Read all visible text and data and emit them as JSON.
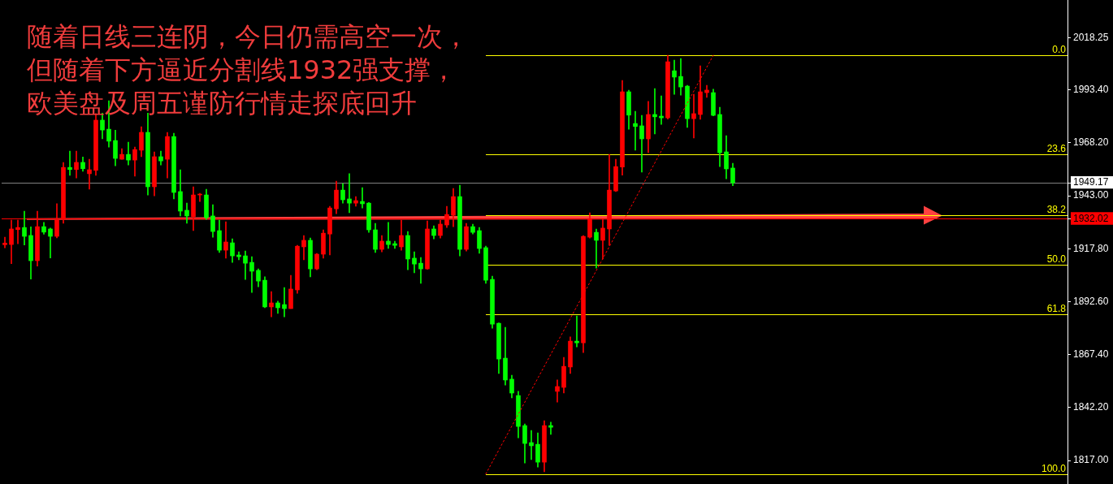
{
  "chart_data": {
    "type": "candlestick",
    "annotations": [
      "随着日线三连阴，今日仍需高空一次，",
      "但随着下方逼近分割线1932强支撑，",
      "欧美盘及周五谨防行情走探底回升"
    ],
    "categories": [
      null,
      null,
      null,
      null,
      null,
      null,
      null,
      null,
      null,
      null,
      null,
      null,
      null,
      null,
      null,
      null,
      null,
      null,
      null,
      null,
      null,
      null,
      null,
      null,
      null,
      null,
      null,
      null,
      null,
      null,
      null,
      null,
      null,
      null,
      null,
      null,
      null,
      null,
      null,
      null,
      null,
      null,
      null,
      null,
      null,
      null,
      null,
      null,
      null,
      null,
      null,
      null,
      null,
      null,
      null,
      null,
      null,
      null,
      null,
      null,
      null,
      null,
      null,
      null,
      null,
      null,
      null,
      null,
      null,
      null,
      null,
      null,
      null,
      null,
      null,
      null,
      null,
      null,
      null,
      null,
      null,
      null,
      null,
      null,
      null,
      null,
      null,
      null,
      null,
      null,
      null,
      null,
      null,
      null,
      null,
      null,
      null,
      null,
      null,
      null,
      null,
      null,
      null,
      null,
      null,
      null,
      null,
      null,
      null,
      null,
      null,
      null,
      null,
      null,
      null,
      null,
      null,
      null,
      null,
      null,
      null,
      null,
      null,
      null,
      null,
      null,
      null,
      null,
      null,
      null,
      null,
      null,
      null,
      null,
      null,
      null,
      null,
      null,
      null,
      null,
      null,
      null,
      null,
      null,
      null,
      null,
      null,
      null,
      null,
      null,
      null,
      null,
      null,
      null,
      null,
      null,
      null,
      null,
      null,
      null,
      null,
      null,
      null,
      null
    ],
    "ohlc": [
      [
        1919.7,
        1923.3,
        1918.2,
        1920.5
      ],
      [
        1919.8,
        1931.4,
        1910.7,
        1927.2
      ],
      [
        1926.9,
        1931.4,
        1920.2,
        1927.9
      ],
      [
        1927.9,
        1935.7,
        1919.6,
        1923.7
      ],
      [
        1924.1,
        1928.2,
        1903.3,
        1912.1
      ],
      [
        1912.1,
        1935.7,
        1909.5,
        1928.3
      ],
      [
        1928.3,
        1930.3,
        1924.7,
        1925.7
      ],
      [
        1927.2,
        1927.6,
        1913.4,
        1923.7
      ],
      [
        1923.7,
        1939.2,
        1923.0,
        1931.5
      ],
      [
        1931.8,
        1958.9,
        1929.9,
        1956.5
      ],
      [
        1956.5,
        1964.3,
        1952.7,
        1955.5
      ],
      [
        1955.5,
        1964.3,
        1951.5,
        1958.9
      ],
      [
        1958.9,
        1961.5,
        1954.7,
        1955.9
      ],
      [
        1953.5,
        1960.4,
        1946.2,
        1955.4
      ],
      [
        1955.1,
        1982.1,
        1952.7,
        1979.0
      ],
      [
        1979.0,
        1982.3,
        1970.1,
        1974.3
      ],
      [
        1974.7,
        1988.2,
        1966.2,
        1969.0
      ],
      [
        1969.3,
        1974.2,
        1957.3,
        1960.8
      ],
      [
        1960.4,
        1965.4,
        1960.4,
        1962.7
      ],
      [
        1962.7,
        1968.5,
        1957.7,
        1960.0
      ],
      [
        1960.0,
        1966.2,
        1952.3,
        1965.0
      ],
      [
        1964.7,
        1975.9,
        1961.6,
        1973.2
      ],
      [
        1973.2,
        1982.3,
        1943.4,
        1947.3
      ],
      [
        1947.3,
        1963.9,
        1943.0,
        1961.6
      ],
      [
        1961.6,
        1964.3,
        1957.7,
        1959.6
      ],
      [
        1960.4,
        1973.2,
        1951.5,
        1971.2
      ],
      [
        1971.2,
        1972.8,
        1941.5,
        1944.6
      ],
      [
        1945.0,
        1955.4,
        1933.4,
        1935.7
      ],
      [
        1936.1,
        1939.5,
        1929.9,
        1933.4
      ],
      [
        1933.0,
        1947.3,
        1926.4,
        1943.4
      ],
      [
        1943.4,
        1944.2,
        1940.3,
        1943.8
      ],
      [
        1943.4,
        1946.1,
        1931.8,
        1932.6
      ],
      [
        1933.4,
        1938.8,
        1923.3,
        1926.0
      ],
      [
        1926.4,
        1931.4,
        1916.0,
        1917.1
      ],
      [
        1917.1,
        1930.6,
        1913.3,
        1921.0
      ],
      [
        1920.6,
        1922.5,
        1911.3,
        1914.4
      ],
      [
        1914.8,
        1916.3,
        1912.5,
        1914.0
      ],
      [
        1914.4,
        1916.7,
        1903.2,
        1910.9
      ],
      [
        1911.3,
        1914.0,
        1897.0,
        1907.1
      ],
      [
        1907.5,
        1908.2,
        1899.7,
        1902.4
      ],
      [
        1902.8,
        1904.4,
        1889.7,
        1890.1
      ],
      [
        1890.1,
        1897.4,
        1885.4,
        1892.0
      ],
      [
        1892.0,
        1892.8,
        1887.0,
        1889.7
      ],
      [
        1891.2,
        1899.3,
        1885.4,
        1889.3
      ],
      [
        1889.3,
        1905.1,
        1889.3,
        1898.6
      ],
      [
        1898.2,
        1919.4,
        1896.6,
        1919.0
      ],
      [
        1918.7,
        1924.1,
        1912.5,
        1921.8
      ],
      [
        1921.8,
        1922.9,
        1904.4,
        1908.2
      ],
      [
        1908.2,
        1915.6,
        1907.8,
        1915.2
      ],
      [
        1915.2,
        1926.8,
        1913.3,
        1925.2
      ],
      [
        1924.8,
        1938.0,
        1914.8,
        1937.2
      ],
      [
        1936.8,
        1950.0,
        1934.5,
        1945.7
      ],
      [
        1945.7,
        1948.8,
        1939.5,
        1941.1
      ],
      [
        1941.5,
        1953.5,
        1934.9,
        1939.5
      ],
      [
        1939.5,
        1942.6,
        1938.0,
        1940.7
      ],
      [
        1940.3,
        1946.9,
        1937.2,
        1939.2
      ],
      [
        1939.5,
        1939.8,
        1925.6,
        1926.8
      ],
      [
        1926.8,
        1929.9,
        1916.0,
        1917.5
      ],
      [
        1917.5,
        1924.1,
        1916.3,
        1921.4
      ],
      [
        1921.4,
        1930.3,
        1917.9,
        1919.8
      ],
      [
        1920.2,
        1921.4,
        1917.9,
        1919.4
      ],
      [
        1918.7,
        1931.4,
        1917.1,
        1924.1
      ],
      [
        1924.1,
        1926.0,
        1907.8,
        1912.9
      ],
      [
        1913.3,
        1916.3,
        1906.3,
        1910.5
      ],
      [
        1910.9,
        1913.6,
        1901.3,
        1908.2
      ],
      [
        1908.2,
        1931.0,
        1908.0,
        1927.2
      ],
      [
        1927.2,
        1928.7,
        1922.5,
        1924.1
      ],
      [
        1924.1,
        1931.4,
        1922.9,
        1929.5
      ],
      [
        1929.1,
        1938.0,
        1927.9,
        1934.1
      ],
      [
        1933.7,
        1946.5,
        1928.3,
        1942.6
      ],
      [
        1942.6,
        1948.0,
        1914.4,
        1917.5
      ],
      [
        1917.5,
        1929.9,
        1916.7,
        1928.3
      ],
      [
        1928.3,
        1929.5,
        1924.8,
        1925.6
      ],
      [
        1926.4,
        1927.9,
        1915.6,
        1917.9
      ],
      [
        1918.3,
        1919.0,
        1901.3,
        1902.8
      ],
      [
        1903.2,
        1904.7,
        1880.0,
        1881.9
      ],
      [
        1882.3,
        1882.5,
        1858.4,
        1865.3
      ],
      [
        1865.7,
        1880.4,
        1852.9,
        1855.3
      ],
      [
        1855.7,
        1857.6,
        1846.8,
        1849.1
      ],
      [
        1847.9,
        1849.9,
        1827.8,
        1833.2
      ],
      [
        1833.6,
        1834.4,
        1815.8,
        1825.1
      ],
      [
        1825.5,
        1831.3,
        1817.4,
        1824.0
      ],
      [
        1824.7,
        1830.1,
        1813.9,
        1816.2
      ],
      [
        1816.2,
        1835.9,
        1811.6,
        1833.6
      ],
      [
        1833.6,
        1835.2,
        1829.4,
        1832.8
      ],
      [
        1849.9,
        1855.3,
        1844.8,
        1852.2
      ],
      [
        1851.8,
        1866.1,
        1849.1,
        1861.8
      ],
      [
        1861.5,
        1875.8,
        1858.4,
        1873.8
      ],
      [
        1873.8,
        1885.8,
        1871.1,
        1873.0
      ],
      [
        1873.0,
        1924.1,
        1868.4,
        1923.7
      ],
      [
        1923.3,
        1934.9,
        1922.9,
        1931.8
      ],
      [
        1925.6,
        1927.2,
        1908.6,
        1921.8
      ],
      [
        1921.8,
        1931.8,
        1912.9,
        1927.6
      ],
      [
        1927.2,
        1962.7,
        1919.4,
        1945.7
      ],
      [
        1945.3,
        1960.4,
        1945.0,
        1956.9
      ],
      [
        1956.7,
        1997.9,
        1952.8,
        1992.5
      ],
      [
        1992.5,
        1993.3,
        1974.7,
        1981.4
      ],
      [
        1977.4,
        1983.2,
        1964.7,
        1976.0
      ],
      [
        1976.3,
        1981.3,
        1954.3,
        1970.1
      ],
      [
        1970.1,
        1987.9,
        1963.6,
        1981.7
      ],
      [
        1981.7,
        1994.0,
        1972.4,
        1980.6
      ],
      [
        1980.9,
        1990.6,
        1977.0,
        1980.1
      ],
      [
        1980.1,
        2009.9,
        1979.5,
        2006.8
      ],
      [
        2002.5,
        2007.6,
        1991.3,
        1999.5
      ],
      [
        1999.8,
        2008.3,
        1990.9,
        1994.8
      ],
      [
        1995.2,
        1995.6,
        1975.5,
        1979.7
      ],
      [
        1979.7,
        1991.3,
        1970.5,
        1982.1
      ],
      [
        1981.7,
        2004.9,
        1979.4,
        1992.5
      ],
      [
        1992.1,
        1995.6,
        1989.8,
        1993.3
      ],
      [
        1992.1,
        1993.7,
        1981.0,
        1981.3
      ],
      [
        1981.7,
        1985.1,
        1956.9,
        1963.5
      ],
      [
        1963.9,
        1971.6,
        1951.1,
        1955.8
      ],
      [
        1956.2,
        1958.5,
        1947.8,
        1949.17
      ],
      null,
      null,
      null,
      null,
      null,
      null,
      null,
      null,
      null,
      null,
      null,
      null,
      null,
      null,
      null,
      null,
      null,
      null,
      null,
      null,
      null,
      null,
      null,
      null,
      null,
      null,
      null,
      null,
      null,
      null,
      null,
      null,
      null,
      null,
      null,
      null,
      null,
      null,
      null,
      null,
      null,
      null,
      null,
      null,
      null,
      null,
      null,
      null,
      null,
      null,
      null
    ],
    "colors": [
      "#ff0000",
      "#ff0000",
      "#ff0000",
      "#00ff00",
      "#00ff00",
      "#ff0000",
      "#00ff00",
      "#00ff00",
      "#ff0000",
      "#ff0000",
      "#00ff00",
      "#ff0000",
      "#00ff00",
      "#ff0000",
      "#ff0000",
      "#00ff00",
      "#00ff00",
      "#00ff00",
      "#ff0000",
      "#00ff00",
      "#ff0000",
      "#ff0000",
      "#00ff00",
      "#ff0000",
      "#00ff00",
      "#ff0000",
      "#00ff00",
      "#00ff00",
      "#00ff00",
      "#ff0000",
      "#ff0000",
      "#00ff00",
      "#00ff00",
      "#00ff00",
      "#ff0000",
      "#00ff00",
      "#00ff00",
      "#00ff00",
      "#00ff00",
      "#00ff00",
      "#00ff00",
      "#ff0000",
      "#00ff00",
      "#00ff00",
      "#ff0000",
      "#ff0000",
      "#ff0000",
      "#00ff00",
      "#ff0000",
      "#ff0000",
      "#ff0000",
      "#ff0000",
      "#00ff00",
      "#00ff00",
      "#ff0000",
      "#00ff00",
      "#00ff00",
      "#00ff00",
      "#ff0000",
      "#00ff00",
      "#00ff00",
      "#ff0000",
      "#00ff00",
      "#00ff00",
      "#00ff00",
      "#ff0000",
      "#00ff00",
      "#ff0000",
      "#ff0000",
      "#ff0000",
      "#00ff00",
      "#ff0000",
      "#00ff00",
      "#00ff00",
      "#00ff00",
      "#00ff00",
      "#00ff00",
      "#00ff00",
      "#00ff00",
      "#00ff00",
      "#00ff00",
      "#00ff00",
      "#00ff00",
      "#ff0000",
      "#00ff00",
      "#ff0000",
      "#ff0000",
      "#ff0000",
      "#00ff00",
      "#ff0000",
      "#ff0000",
      "#00ff00",
      "#ff0000",
      "#ff0000",
      "#ff0000",
      "#ff0000",
      "#00ff00",
      "#00ff00",
      "#00ff00",
      "#ff0000",
      "#00ff00",
      "#00ff00",
      "#ff0000",
      "#00ff00",
      "#00ff00",
      "#00ff00",
      "#ff0000",
      "#ff0000",
      "#ff0000",
      "#00ff00",
      "#00ff00",
      "#00ff00",
      "#00ff00",
      null,
      null,
      null,
      null,
      null,
      null,
      null,
      null,
      null,
      null,
      null,
      null,
      null,
      null,
      null,
      null,
      null,
      null,
      null,
      null,
      null,
      null,
      null,
      null,
      null,
      null,
      null,
      null,
      null,
      null,
      null,
      null,
      null,
      null,
      null,
      null,
      null,
      null,
      null,
      null,
      null,
      null,
      null,
      null,
      null,
      null,
      null,
      null,
      null,
      null,
      null
    ],
    "series": [
      {
        "type": "line",
        "color": "#ff0000",
        "line_style": "dotted",
        "values": [
          null,
          null,
          null,
          null,
          null,
          null,
          null,
          null,
          null,
          null,
          null,
          null,
          null,
          null,
          null,
          null,
          null,
          null,
          null,
          null,
          null,
          null,
          null,
          null,
          null,
          null,
          null,
          null,
          null,
          null,
          null,
          null,
          null,
          null,
          null,
          null,
          null,
          null,
          null,
          null,
          null,
          null,
          null,
          null,
          null,
          null,
          null,
          null,
          null,
          null,
          null,
          null,
          null,
          null,
          null,
          null,
          null,
          null,
          null,
          null,
          null,
          null,
          null,
          null,
          null,
          null,
          null,
          null,
          null,
          null,
          null,
          null,
          null,
          null,
          1810.6,
          null,
          null,
          null,
          null,
          null,
          null,
          null,
          null,
          null,
          null,
          null,
          null,
          null,
          null,
          null,
          null,
          null,
          null,
          null,
          null,
          null,
          null,
          null,
          null,
          null,
          null,
          null,
          null,
          null,
          null,
          null,
          null,
          null,
          null,
          2009.9,
          null,
          null,
          null,
          null,
          null,
          null,
          null,
          null,
          null,
          null,
          null,
          null,
          null,
          null,
          null,
          null,
          null,
          null,
          null,
          null,
          null,
          null,
          null,
          null,
          null,
          null,
          null,
          null,
          null,
          null,
          null,
          null,
          null,
          null,
          null,
          null,
          null,
          null,
          null,
          null,
          null,
          null,
          null,
          null,
          null,
          null,
          null,
          null,
          null,
          null,
          null,
          null,
          null,
          null
        ]
      }
    ],
    "ylim": [
      1805.8,
      2036.2
    ],
    "yticks": [
      {
        "value": 2018.25,
        "label": "2018.25"
      },
      {
        "value": 1993.4,
        "label": "1993.40"
      },
      {
        "value": 1968.2,
        "label": "1968.20"
      },
      {
        "value": 1949.17,
        "label": "1949.17"
      },
      {
        "value": 1943,
        "label": "1943.00"
      },
      {
        "value": 1932.02,
        "label": "1932.02"
      },
      {
        "value": 1917.8,
        "label": "1917.80"
      },
      {
        "value": 1892.6,
        "label": "1892.60"
      },
      {
        "value": 1867.4,
        "label": "1867.40"
      },
      {
        "value": 1842.2,
        "label": "1842.20"
      },
      {
        "value": 1817,
        "label": "1817.00"
      }
    ],
    "y2lim": [
      102.4,
      -13.2
    ],
    "ref_lines": [
      {
        "axis": "y",
        "value": 1949.17,
        "color": "#808080"
      },
      {
        "axis": "y",
        "value": 1932.02,
        "color": "#ff0000"
      },
      {
        "axis": "y2",
        "value": 0,
        "label": "0.0",
        "color": "#ffff00"
      },
      {
        "axis": "y2",
        "value": 23.6,
        "label": "23.6",
        "color": "#ffff00"
      },
      {
        "axis": "y2",
        "value": 38.2,
        "label": "38.2",
        "color": "#ffff00"
      },
      {
        "axis": "y2",
        "value": 50,
        "label": "50.0",
        "color": "#ffff00"
      },
      {
        "axis": "y2",
        "value": 61.8,
        "label": "61.8",
        "color": "#ffff00"
      },
      {
        "axis": "y2",
        "value": 100,
        "label": "100.0",
        "color": "#ffff00"
      }
    ],
    "tick_labels": "y"
  }
}
